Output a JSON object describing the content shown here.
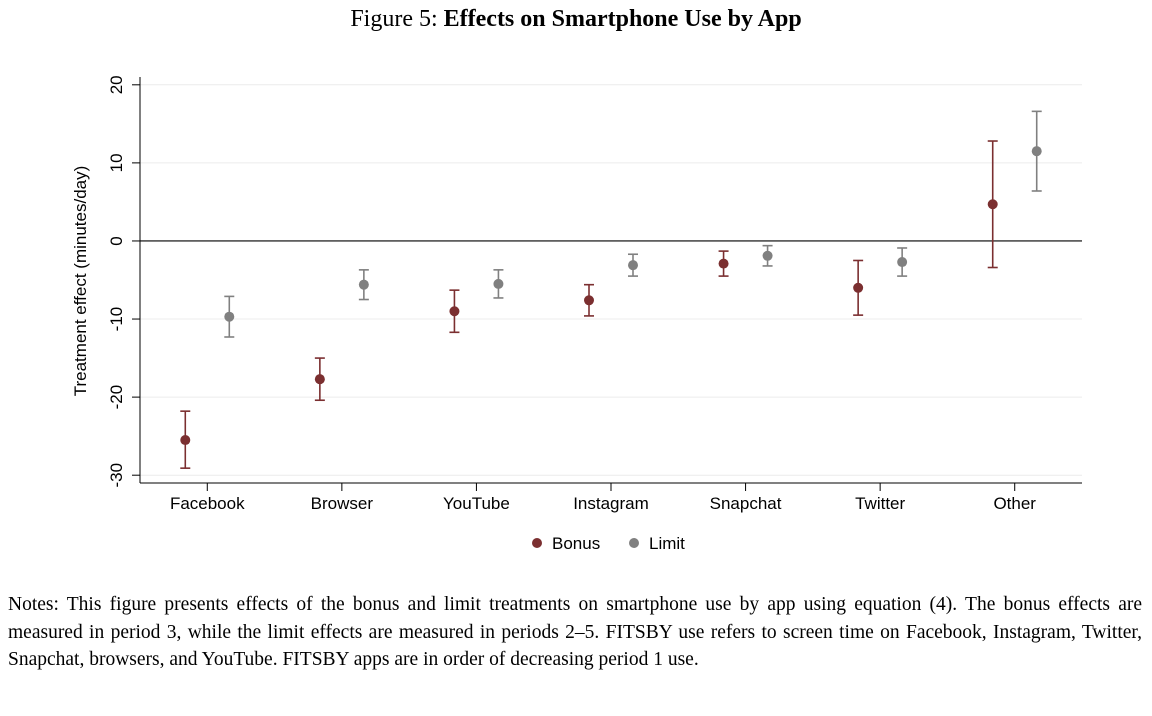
{
  "figure": {
    "label": "Figure 5:",
    "title": "Effects on Smartphone Use by App"
  },
  "chart_data": {
    "type": "scatter",
    "title": "Effects on Smartphone Use by App",
    "ylabel": "Treatment effect (minutes/day)",
    "xlabel": "",
    "categories": [
      "Facebook",
      "Browser",
      "YouTube",
      "Instagram",
      "Snapchat",
      "Twitter",
      "Other"
    ],
    "ylim": [
      -31,
      21
    ],
    "yticks": [
      20,
      10,
      0,
      -10,
      -20,
      -30
    ],
    "grid": true,
    "zero_line": true,
    "legend_position": "bottom",
    "series": [
      {
        "name": "Bonus",
        "color": "#7b2f30",
        "values": [
          -25.5,
          -17.7,
          -9.0,
          -7.6,
          -2.9,
          -6.0,
          4.7
        ],
        "ci_low": [
          -29.1,
          -20.4,
          -11.7,
          -9.6,
          -4.5,
          -9.5,
          -3.4
        ],
        "ci_high": [
          -21.8,
          -15.0,
          -6.3,
          -5.6,
          -1.3,
          -2.5,
          12.8
        ]
      },
      {
        "name": "Limit",
        "color": "#808080",
        "values": [
          -9.7,
          -5.6,
          -5.5,
          -3.1,
          -1.9,
          -2.7,
          11.5
        ],
        "ci_low": [
          -12.3,
          -7.5,
          -7.3,
          -4.5,
          -3.2,
          -4.5,
          6.4
        ],
        "ci_high": [
          -7.1,
          -3.7,
          -3.7,
          -1.7,
          -0.6,
          -0.9,
          16.6
        ]
      }
    ]
  },
  "notes": "Notes: This figure presents effects of the bonus and limit treatments on smartphone use by app using equation (4). The bonus effects are measured in period 3, while the limit effects are measured in periods 2–5. FITSBY use refers to screen time on Facebook, Instagram, Twitter, Snapchat, browsers, and YouTube. FITSBY apps are in order of decreasing period 1 use."
}
